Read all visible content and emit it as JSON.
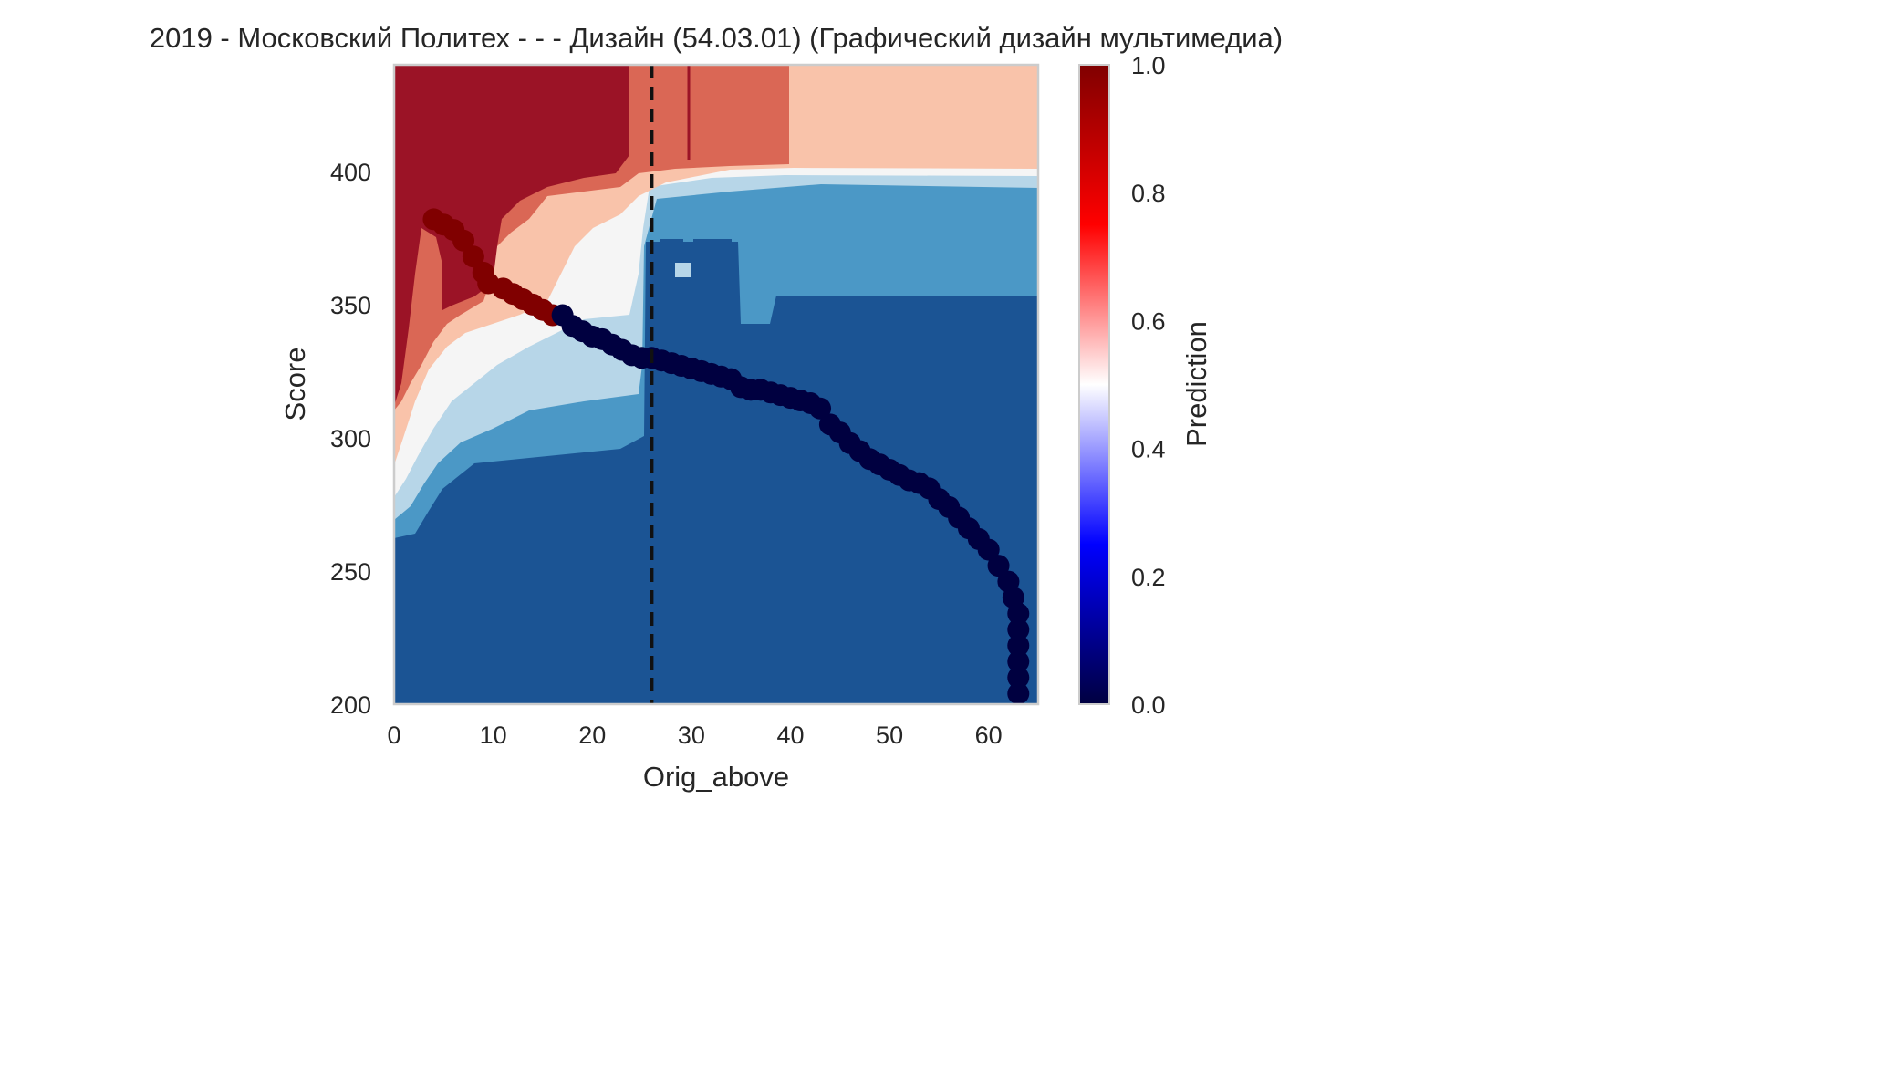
{
  "chart_data": {
    "type": "heatmap",
    "title": "2019 - Московский Политех - - - Дизайн (54.03.01) (Графический дизайн мультимедиа)",
    "xlabel": "Orig_above",
    "ylabel": "Score",
    "xlim": [
      0,
      65
    ],
    "ylim": [
      200,
      440
    ],
    "xticks": [
      0,
      10,
      20,
      30,
      40,
      50,
      60
    ],
    "yticks": [
      200,
      250,
      300,
      350,
      400
    ],
    "grid": false,
    "reference_line": {
      "x": 26,
      "style": "dashed",
      "color": "#111111"
    },
    "colorbar": {
      "label": "Prediction",
      "range": [
        0,
        1
      ],
      "ticks": [
        "0.0",
        "0.2",
        "0.4",
        "0.6",
        "0.8",
        "1.0"
      ],
      "colormap": "seismic",
      "stops": [
        "#000040",
        "#0000ff",
        "#ffffff",
        "#ff0000",
        "#800000"
      ]
    },
    "contour_levels": [
      {
        "level": "0.0–0.1",
        "color": "#1b5494"
      },
      {
        "level": "0.1–0.2",
        "color": "#4b98c6"
      },
      {
        "level": "0.2–0.4",
        "color": "#b7d6e8"
      },
      {
        "level": "0.4–0.5",
        "color": "#f5f5f5"
      },
      {
        "level": "0.5–0.6",
        "color": "#f9c3aa"
      },
      {
        "level": "0.6–0.8",
        "color": "#da6755"
      },
      {
        "level": "0.8–1.0",
        "color": "#9b1326"
      }
    ],
    "series": [
      {
        "marker": "circle",
        "points_predicted_1": [
          [
            4,
            382
          ],
          [
            5,
            380
          ],
          [
            6,
            378
          ],
          [
            7,
            374
          ],
          [
            8,
            368
          ],
          [
            9,
            362
          ],
          [
            9.5,
            358
          ],
          [
            11,
            356
          ],
          [
            12,
            354
          ],
          [
            13,
            352
          ],
          [
            14,
            350
          ],
          [
            15,
            348
          ],
          [
            16,
            346
          ]
        ],
        "points_predicted_0": [
          [
            17,
            346
          ],
          [
            18,
            342
          ],
          [
            19,
            340
          ],
          [
            20,
            338
          ],
          [
            21,
            337
          ],
          [
            22,
            335
          ],
          [
            23,
            333
          ],
          [
            24,
            331
          ],
          [
            25,
            330
          ],
          [
            26,
            330
          ],
          [
            27,
            329
          ],
          [
            28,
            328
          ],
          [
            29,
            327
          ],
          [
            30,
            326
          ],
          [
            31,
            325
          ],
          [
            32,
            324
          ],
          [
            33,
            323
          ],
          [
            34,
            322
          ],
          [
            35,
            319
          ],
          [
            36,
            318
          ],
          [
            37,
            318
          ],
          [
            38,
            317
          ],
          [
            39,
            316
          ],
          [
            40,
            315
          ],
          [
            41,
            314
          ],
          [
            42,
            313
          ],
          [
            43,
            311
          ],
          [
            44,
            305
          ],
          [
            45,
            302
          ],
          [
            46,
            298
          ],
          [
            47,
            295
          ],
          [
            48,
            292
          ],
          [
            49,
            290
          ],
          [
            50,
            288
          ],
          [
            51,
            286
          ],
          [
            52,
            284
          ],
          [
            53,
            283
          ],
          [
            54,
            281
          ],
          [
            55,
            277
          ],
          [
            56,
            274
          ],
          [
            57,
            270
          ],
          [
            58,
            266
          ],
          [
            59,
            262
          ],
          [
            60,
            258
          ],
          [
            61,
            252
          ],
          [
            62,
            246
          ],
          [
            62.5,
            240
          ],
          [
            63,
            234
          ],
          [
            63,
            228
          ],
          [
            63,
            222
          ],
          [
            63,
            216
          ],
          [
            63,
            210
          ],
          [
            63,
            204
          ]
        ]
      }
    ]
  }
}
